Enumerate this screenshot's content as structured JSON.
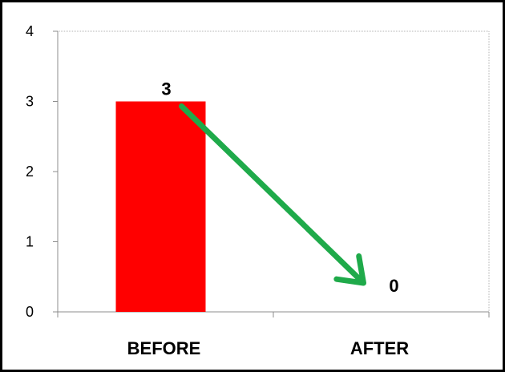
{
  "chart_data": {
    "type": "bar",
    "categories": [
      "BEFORE",
      "AFTER"
    ],
    "values": [
      3,
      0
    ],
    "data_labels": [
      "3",
      "0"
    ],
    "ylim": [
      0,
      4
    ],
    "yticks": [
      0,
      1,
      2,
      3,
      4
    ],
    "ytick_labels": [
      "0",
      "1",
      "2",
      "3",
      "4"
    ],
    "title": "",
    "xlabel": "",
    "ylabel": "",
    "grid": false,
    "legend": "none",
    "annotation": {
      "type": "arrow",
      "from_category": "BEFORE",
      "from_value": 3,
      "to_category": "AFTER",
      "to_value": 0
    },
    "colors": {
      "bar": "#ff0000",
      "arrow": "#1faa4a",
      "frame": "#000000",
      "axis": "#8c8c8c",
      "plot_border": "#b3b3b3"
    }
  }
}
